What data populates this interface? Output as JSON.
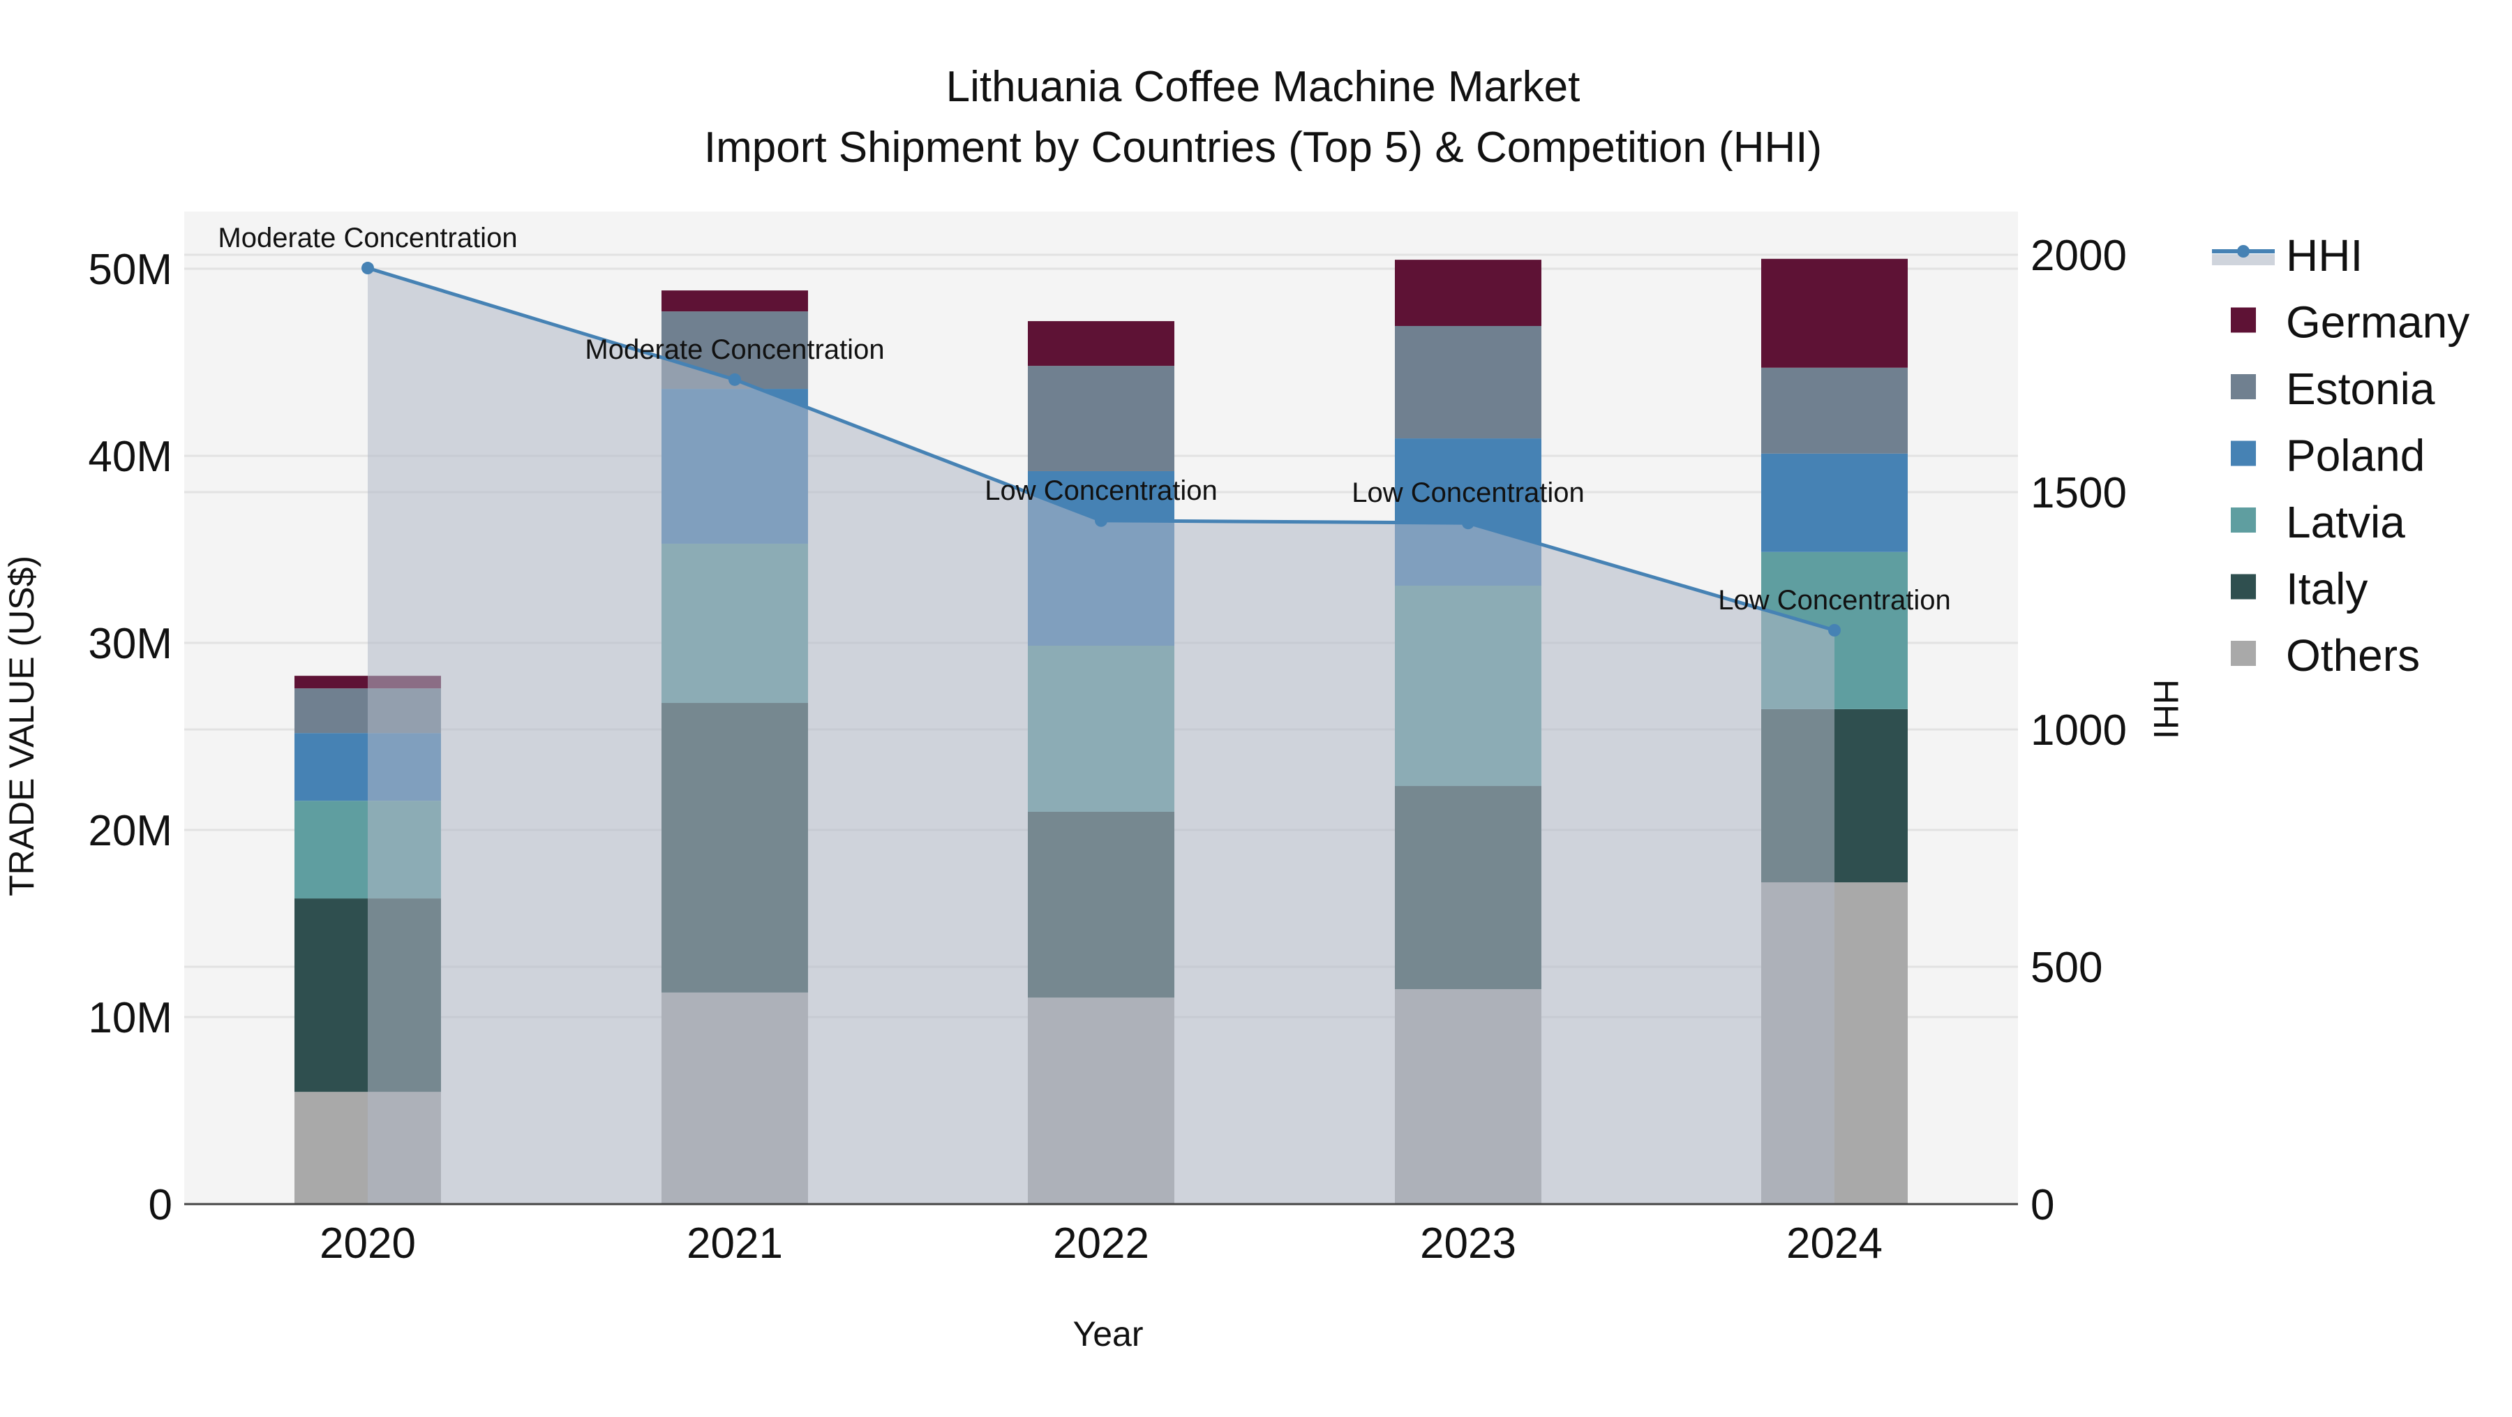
{
  "title": {
    "line1": "Lithuania Coffee Machine Market",
    "line2": "Import Shipment by Countries (Top 5) & Competition (HHI)"
  },
  "axes": {
    "x_title": "Year",
    "y_left_title": "TRADE VALUE (US$)",
    "y_right_title": "HHI",
    "y_left_ticks": [
      "0",
      "10M",
      "20M",
      "30M",
      "40M",
      "50M"
    ],
    "y_right_ticks": [
      "0",
      "500",
      "1000",
      "1500",
      "2000"
    ]
  },
  "legend": [
    {
      "label": "HHI",
      "type": "line",
      "color": "#4682b4"
    },
    {
      "label": "Germany",
      "type": "box",
      "color": "#5e1235"
    },
    {
      "label": "Estonia",
      "type": "box",
      "color": "#708090"
    },
    {
      "label": "Poland",
      "type": "box",
      "color": "#4682b4"
    },
    {
      "label": "Latvia",
      "type": "box",
      "color": "#5f9ea0"
    },
    {
      "label": "Italy",
      "type": "box",
      "color": "#2f4f4f"
    },
    {
      "label": "Others",
      "type": "box",
      "color": "#a9a9a9"
    }
  ],
  "chart_data": {
    "type": "bar",
    "stacked": true,
    "title": "Lithuania Coffee Machine Market — Import Shipment by Countries (Top 5) & Competition (HHI)",
    "xlabel": "Year",
    "ylabel": "TRADE VALUE (US$)",
    "y2label": "HHI",
    "categories": [
      "2020",
      "2021",
      "2022",
      "2023",
      "2024"
    ],
    "ylim": [
      0,
      53000000
    ],
    "y2lim": [
      0,
      2080
    ],
    "grid": true,
    "legend_position": "right",
    "series": [
      {
        "name": "Others",
        "color": "#a9a9a9",
        "values": [
          6000000,
          11310000,
          11040000,
          11490000,
          17200000
        ]
      },
      {
        "name": "Italy",
        "color": "#2f4f4f",
        "values": [
          10340000,
          15480000,
          9930000,
          10860000,
          9260000
        ]
      },
      {
        "name": "Latvia",
        "color": "#5f9ea0",
        "values": [
          5220000,
          8510000,
          8880000,
          10710000,
          8400000
        ]
      },
      {
        "name": "Poland",
        "color": "#4682b4",
        "values": [
          3620000,
          8280000,
          9330000,
          7870000,
          5260000
        ]
      },
      {
        "name": "Estonia",
        "color": "#708090",
        "values": [
          2390000,
          4140000,
          5630000,
          6010000,
          4590000
        ]
      },
      {
        "name": "Germany",
        "color": "#5e1235",
        "values": [
          670000,
          1120000,
          2390000,
          3540000,
          5820000
        ]
      }
    ],
    "line_series": {
      "name": "HHI",
      "axis": "right",
      "color": "#4682b4",
      "fill": "tozeroy",
      "values": [
        1972,
        1737,
        1440,
        1435,
        1209
      ],
      "annotations": [
        "Moderate Concentration",
        "Moderate Concentration",
        "Low Concentration",
        "Low Concentration",
        "Low Concentration"
      ]
    }
  }
}
